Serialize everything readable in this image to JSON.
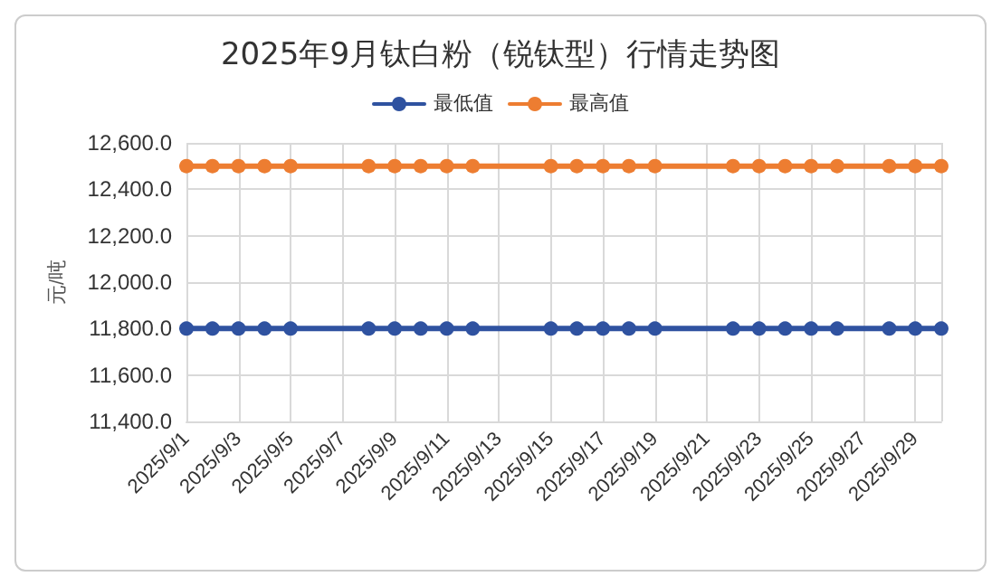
{
  "chart_data": {
    "type": "line",
    "title": "2025年9月钛白粉（锐钛型）行情走势图",
    "ylabel": "元/吨",
    "categories": [
      "2025/9/1",
      null,
      "2025/9/3",
      null,
      "2025/9/5",
      null,
      "2025/9/7",
      null,
      "2025/9/9",
      null,
      "2025/9/11",
      null,
      "2025/9/13",
      null,
      "2025/9/15",
      null,
      "2025/9/17",
      null,
      "2025/9/19",
      null,
      "2025/9/21",
      null,
      "2025/9/23",
      null,
      "2025/9/25",
      null,
      "2025/9/27",
      null,
      "2025/9/29",
      null
    ],
    "series": [
      {
        "name": "最低值",
        "color": "#2f52a0",
        "values": [
          11800,
          11800,
          11800,
          11800,
          11800,
          null,
          null,
          11800,
          11800,
          11800,
          11800,
          11800,
          null,
          null,
          11800,
          11800,
          11800,
          11800,
          11800,
          null,
          null,
          11800,
          11800,
          11800,
          11800,
          11800,
          null,
          11800,
          11800,
          11800
        ]
      },
      {
        "name": "最高值",
        "color": "#ed7d31",
        "values": [
          12500,
          12500,
          12500,
          12500,
          12500,
          null,
          null,
          12500,
          12500,
          12500,
          12500,
          12500,
          null,
          null,
          12500,
          12500,
          12500,
          12500,
          12500,
          null,
          null,
          12500,
          12500,
          12500,
          12500,
          12500,
          null,
          12500,
          12500,
          12500
        ]
      }
    ],
    "ylim": [
      11400,
      12600
    ],
    "yticks": [
      {
        "value": 11400,
        "label": "11,400.0"
      },
      {
        "value": 11600,
        "label": "11,600.0"
      },
      {
        "value": 11800,
        "label": "11,800.0"
      },
      {
        "value": 12000,
        "label": "12,000.0"
      },
      {
        "value": 12200,
        "label": "12,200.0"
      },
      {
        "value": 12400,
        "label": "12,400.0"
      },
      {
        "value": 12600,
        "label": "12,600.0"
      }
    ],
    "grid": true,
    "legend": "top",
    "marker": "circle",
    "line_style": "solid"
  }
}
